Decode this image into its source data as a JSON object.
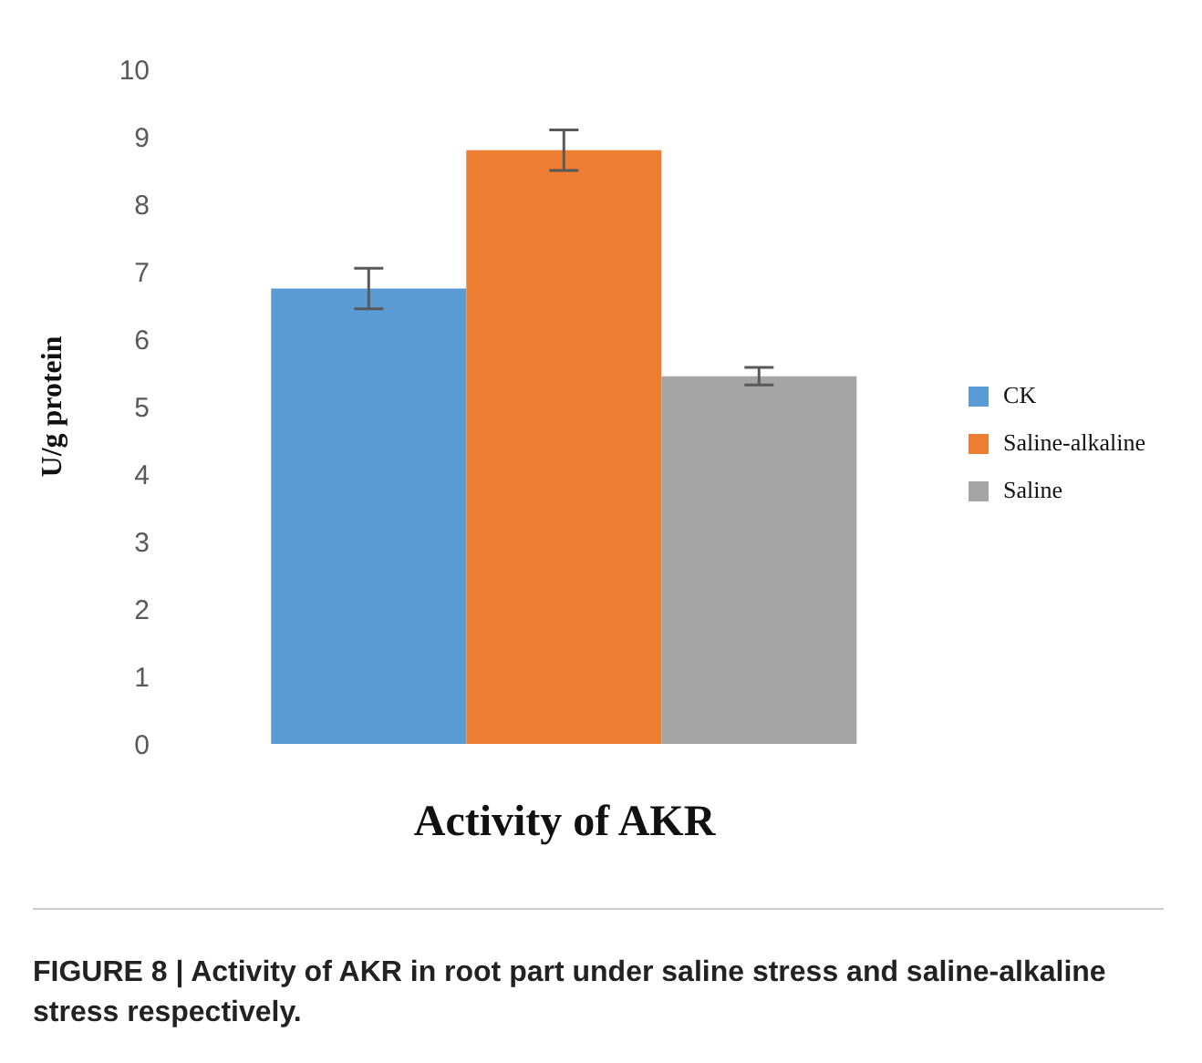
{
  "chart_data": {
    "type": "bar",
    "xlabel": "Activity of AKR",
    "ylabel": "U/g protein",
    "categories": [
      null
    ],
    "series": [
      {
        "name": "CK",
        "color": "#5b9bd5",
        "values": [
          6.75
        ],
        "errors": [
          0.3
        ]
      },
      {
        "name": "Saline-alkaline",
        "color": "#ed7d31",
        "values": [
          8.8
        ],
        "errors": [
          0.3
        ]
      },
      {
        "name": "Saline",
        "color": "#a5a5a5",
        "values": [
          5.45
        ],
        "errors": [
          0.13
        ]
      }
    ],
    "ylim": [
      0,
      10
    ],
    "yticks": [
      0,
      1,
      2,
      3,
      4,
      5,
      6,
      7,
      8,
      9,
      10
    ],
    "grid": false,
    "legend": "right",
    "annotations": [
      "FIGURE 8 | Activity of AKR in root part under saline stress and saline-alkaline stress respectively."
    ]
  }
}
